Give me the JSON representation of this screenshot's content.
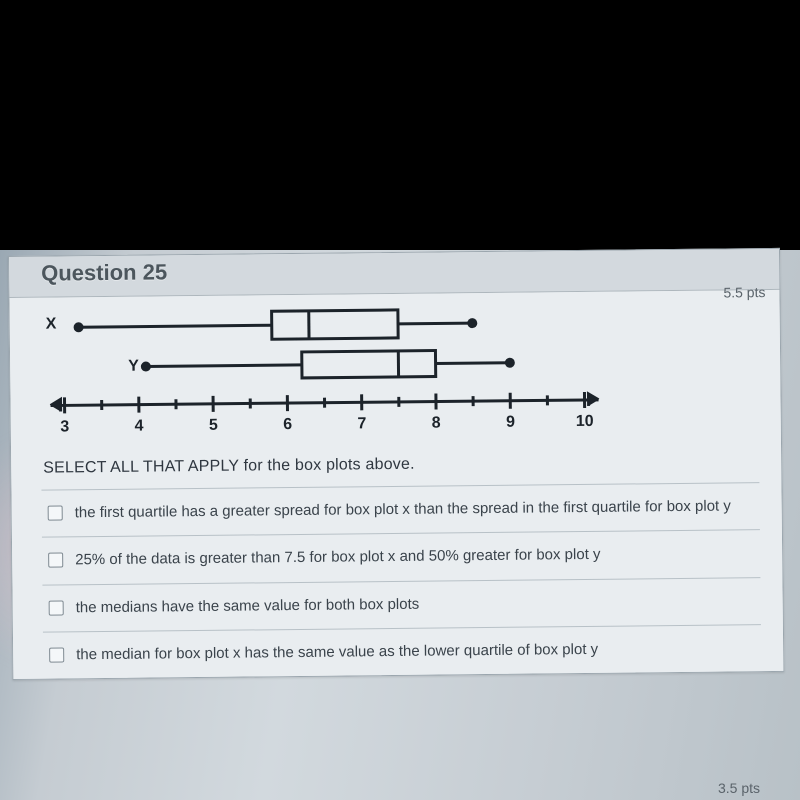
{
  "header": {
    "title": "Question 25",
    "points": "5.5 pts"
  },
  "chart": {
    "type": "boxplot",
    "background_color": "#e9edf0",
    "stroke_color": "#1c232a",
    "stroke_width": 3,
    "dot_radius": 5,
    "axis": {
      "xmin": 3,
      "xmax": 10,
      "tick_start": 3,
      "tick_end": 10.5,
      "tick_step": 0.5,
      "labeled_ticks": [
        3,
        4,
        5,
        6,
        7,
        8,
        9,
        10
      ],
      "arrowheads": true,
      "label_fontsize": 16,
      "label_fontweight": 700
    },
    "plots": {
      "x": {
        "label": "X",
        "min": 3.2,
        "q1": 5.8,
        "median": 6.3,
        "q3": 7.5,
        "max": 8.5,
        "end_markers": "dot"
      },
      "y": {
        "label": "Y",
        "min": 4.1,
        "q1": 6.2,
        "median": 7.5,
        "q3": 8.0,
        "max": 9.0,
        "end_markers": "dot"
      }
    }
  },
  "instruction": "SELECT ALL THAT APPLY for the box  plots above.",
  "options": [
    "the first quartile has a greater spread for box plot x than the spread in the first quartile for box plot y",
    "25% of the data is greater than 7.5 for box plot  x and 50% greater for box plot y",
    "the medians have the same value for both box plots",
    "the median for box plot x has the same value as the lower quartile of box plot y"
  ],
  "next_points": "3.5 pts",
  "colors": {
    "page_bg": "#000000",
    "sheet_bg": "#e7ebee",
    "header_bg": "#d3d9de",
    "border": "#9ba6ae",
    "text": "#3a434b",
    "title_text": "#4c565d"
  }
}
